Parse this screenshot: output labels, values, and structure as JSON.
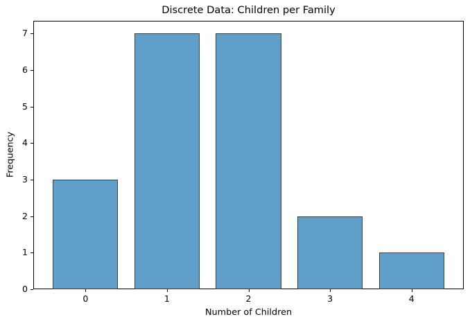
{
  "chart_data": {
    "type": "bar",
    "title": "Discrete Data: Children per Family",
    "xlabel": "Number of Children",
    "ylabel": "Frequency",
    "categories": [
      "0",
      "1",
      "2",
      "3",
      "4"
    ],
    "values": [
      3,
      7,
      7,
      2,
      1
    ],
    "yticks": [
      0,
      1,
      2,
      3,
      4,
      5,
      6,
      7
    ],
    "ylim": [
      0,
      7.35
    ],
    "xlim": [
      -0.64,
      4.64
    ],
    "bar_width": 0.8,
    "bar_color": "#619FCB",
    "bar_edge_color": "#3f3f3f",
    "grid": false,
    "legend_position": "none"
  }
}
